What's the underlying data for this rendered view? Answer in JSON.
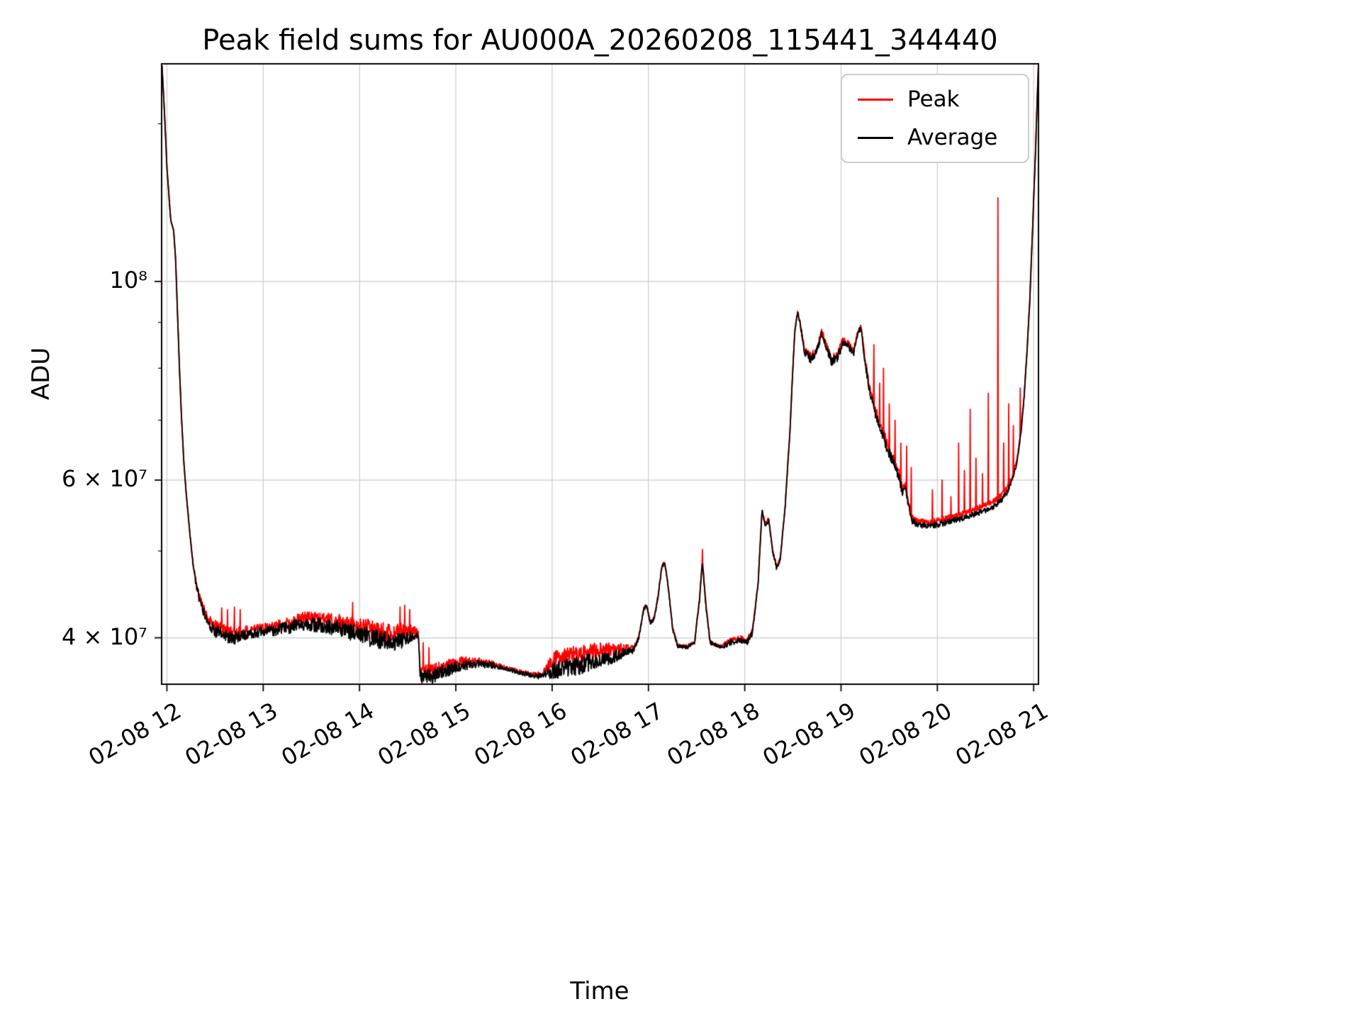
{
  "figure": {
    "title": "Peak field sums for AU000A_20260208_115441_344440",
    "xlabel": "Time",
    "ylabel": "ADU"
  },
  "legend": {
    "items": [
      {
        "label": "Peak",
        "color": "#ff0000"
      },
      {
        "label": "Average",
        "color": "#000000"
      }
    ]
  },
  "grid": {
    "show": true,
    "color": "#cccccc"
  },
  "chart_data": {
    "type": "line",
    "title": "Peak field sums for AU000A_20260208_115441_344440",
    "xlabel": "Time",
    "ylabel": "ADU",
    "y_scale": "log",
    "legend_position": "upper right",
    "x_axis": {
      "epoch_label": "02-08 12:00",
      "tick_hours": [
        0,
        1,
        2,
        3,
        4,
        5,
        6,
        7,
        8,
        9
      ],
      "tick_labels": [
        "02-08 12",
        "02-08 13",
        "02-08 14",
        "02-08 15",
        "02-08 16",
        "02-08 17",
        "02-08 18",
        "02-08 19",
        "02-08 20",
        "02-08 21"
      ],
      "range_hours": [
        -0.055,
        9.05
      ]
    },
    "y_axis": {
      "range": [
        35500000.0,
        175000000.0
      ],
      "major_ticks": [
        {
          "value": 40000000.0,
          "label": "4 × 10⁷"
        },
        {
          "value": 60000000.0,
          "label": "6 × 10⁷"
        },
        {
          "value": 100000000.0,
          "label": "10⁸"
        }
      ],
      "minor_ticks": [
        50000000.0,
        70000000.0,
        80000000.0,
        90000000.0,
        150000000.0
      ]
    },
    "series": [
      {
        "name": "Peak",
        "color": "#ff0000",
        "line_width": 1.8
      },
      {
        "name": "Average",
        "color": "#000000",
        "line_width": 1.8
      }
    ],
    "value_scale": 10000000.0,
    "sample_step_hours": 0.004,
    "noise_seed": 42,
    "baseline_keypoints": [
      [
        -0.051,
        17.4,
        0,
        0
      ],
      [
        -0.02,
        15.0,
        0,
        0
      ],
      [
        0.0,
        13.4,
        0,
        0
      ],
      [
        0.025,
        12.3,
        0,
        0
      ],
      [
        0.04,
        11.7,
        0,
        0
      ],
      [
        0.07,
        11.4,
        0,
        0
      ],
      [
        0.09,
        10.6,
        0,
        0
      ],
      [
        0.11,
        9.2,
        0,
        0
      ],
      [
        0.13,
        8.0,
        0,
        0
      ],
      [
        0.15,
        7.1,
        0,
        0
      ],
      [
        0.175,
        6.3,
        0,
        0
      ],
      [
        0.2,
        5.8,
        0,
        0
      ],
      [
        0.24,
        5.2,
        0.02,
        0.01
      ],
      [
        0.27,
        4.85,
        0.03,
        0.02
      ],
      [
        0.3,
        4.6,
        0.04,
        0.03
      ],
      [
        0.34,
        4.4,
        0.05,
        0.03
      ],
      [
        0.38,
        4.28,
        0.05,
        0.04
      ],
      [
        0.42,
        4.18,
        0.06,
        0.04
      ],
      [
        0.47,
        4.1,
        0.06,
        0.04
      ],
      [
        0.52,
        4.06,
        0.07,
        0.05
      ],
      [
        0.6,
        4.02,
        0.07,
        0.05
      ],
      [
        0.7,
        4.0,
        0.07,
        0.05
      ],
      [
        0.8,
        4.02,
        0.06,
        0.04
      ],
      [
        0.9,
        4.05,
        0.05,
        0.04
      ],
      [
        1.0,
        4.06,
        0.05,
        0.04
      ],
      [
        1.15,
        4.08,
        0.06,
        0.05
      ],
      [
        1.3,
        4.12,
        0.07,
        0.05
      ],
      [
        1.45,
        4.15,
        0.07,
        0.06
      ],
      [
        1.6,
        4.13,
        0.08,
        0.06
      ],
      [
        1.75,
        4.1,
        0.09,
        0.07
      ],
      [
        1.9,
        4.06,
        0.09,
        0.07
      ],
      [
        2.05,
        4.02,
        0.1,
        0.08
      ],
      [
        2.2,
        3.98,
        0.1,
        0.09
      ],
      [
        2.35,
        3.95,
        0.1,
        0.1
      ],
      [
        2.45,
        3.98,
        0.08,
        0.1
      ],
      [
        2.55,
        4.02,
        0.05,
        0.06
      ],
      [
        2.61,
        4.02,
        0.03,
        0.04
      ],
      [
        2.63,
        3.62,
        0.06,
        0.05
      ],
      [
        2.75,
        3.62,
        0.07,
        0.05
      ],
      [
        2.9,
        3.68,
        0.06,
        0.04
      ],
      [
        3.05,
        3.72,
        0.05,
        0.04
      ],
      [
        3.2,
        3.74,
        0.04,
        0.03
      ],
      [
        3.35,
        3.73,
        0.03,
        0.02
      ],
      [
        3.5,
        3.7,
        0.02,
        0.01
      ],
      [
        3.65,
        3.66,
        0.02,
        0.01
      ],
      [
        3.8,
        3.63,
        0.02,
        0.01
      ],
      [
        3.9,
        3.62,
        0.03,
        0.02
      ],
      [
        4.0,
        3.68,
        0.08,
        0.1
      ],
      [
        4.15,
        3.7,
        0.09,
        0.11
      ],
      [
        4.3,
        3.73,
        0.09,
        0.11
      ],
      [
        4.45,
        3.77,
        0.08,
        0.1
      ],
      [
        4.6,
        3.8,
        0.07,
        0.08
      ],
      [
        4.75,
        3.84,
        0.05,
        0.05
      ],
      [
        4.85,
        3.88,
        0.03,
        0.02
      ],
      [
        4.9,
        4.0,
        0.02,
        0.01
      ],
      [
        4.95,
        4.3,
        0.02,
        0.01
      ],
      [
        4.98,
        4.35,
        0.02,
        0.01
      ],
      [
        5.02,
        4.15,
        0.02,
        0.01
      ],
      [
        5.06,
        4.2,
        0.02,
        0.01
      ],
      [
        5.1,
        4.45,
        0.02,
        0.01
      ],
      [
        5.14,
        4.8,
        0.02,
        0.01
      ],
      [
        5.17,
        4.85,
        0.02,
        0.01
      ],
      [
        5.2,
        4.6,
        0.02,
        0.01
      ],
      [
        5.25,
        4.1,
        0.02,
        0.01
      ],
      [
        5.3,
        3.92,
        0.02,
        0.01
      ],
      [
        5.4,
        3.9,
        0.02,
        0.01
      ],
      [
        5.48,
        3.95,
        0.02,
        0.01
      ],
      [
        5.53,
        4.4,
        0.02,
        0.02
      ],
      [
        5.56,
        4.85,
        0.02,
        0.05
      ],
      [
        5.6,
        4.3,
        0.02,
        0.02
      ],
      [
        5.64,
        3.95,
        0.02,
        0.01
      ],
      [
        5.75,
        3.9,
        0.02,
        0.01
      ],
      [
        5.85,
        3.95,
        0.03,
        0.02
      ],
      [
        5.95,
        3.98,
        0.03,
        0.02
      ],
      [
        6.02,
        3.95,
        0.03,
        0.02
      ],
      [
        6.08,
        4.05,
        0.03,
        0.02
      ],
      [
        6.14,
        4.6,
        0.02,
        0.01
      ],
      [
        6.18,
        5.55,
        0.02,
        0.01
      ],
      [
        6.21,
        5.35,
        0.03,
        0.02
      ],
      [
        6.25,
        5.4,
        0.03,
        0.02
      ],
      [
        6.29,
        5.0,
        0.03,
        0.02
      ],
      [
        6.33,
        4.78,
        0.03,
        0.02
      ],
      [
        6.37,
        4.9,
        0.02,
        0.01
      ],
      [
        6.42,
        5.6,
        0.02,
        0.01
      ],
      [
        6.47,
        6.8,
        0.02,
        0.01
      ],
      [
        6.52,
        8.8,
        0.02,
        0.01
      ],
      [
        6.55,
        9.25,
        0.03,
        0.02
      ],
      [
        6.58,
        8.9,
        0.05,
        0.03
      ],
      [
        6.62,
        8.35,
        0.08,
        0.04
      ],
      [
        6.68,
        8.2,
        0.1,
        0.05
      ],
      [
        6.74,
        8.3,
        0.1,
        0.05
      ],
      [
        6.8,
        8.75,
        0.08,
        0.04
      ],
      [
        6.84,
        8.5,
        0.08,
        0.04
      ],
      [
        6.9,
        8.15,
        0.1,
        0.05
      ],
      [
        6.96,
        8.2,
        0.1,
        0.05
      ],
      [
        7.02,
        8.55,
        0.08,
        0.05
      ],
      [
        7.08,
        8.45,
        0.08,
        0.05
      ],
      [
        7.13,
        8.3,
        0.08,
        0.05
      ],
      [
        7.18,
        8.8,
        0.06,
        0.04
      ],
      [
        7.21,
        8.85,
        0.06,
        0.04
      ],
      [
        7.25,
        8.1,
        0.08,
        0.05
      ],
      [
        7.3,
        7.5,
        0.08,
        0.06
      ],
      [
        7.36,
        7.1,
        0.09,
        0.07
      ],
      [
        7.42,
        6.8,
        0.09,
        0.08
      ],
      [
        7.48,
        6.5,
        0.09,
        0.08
      ],
      [
        7.54,
        6.3,
        0.08,
        0.08
      ],
      [
        7.6,
        6.05,
        0.07,
        0.07
      ],
      [
        7.64,
        5.8,
        0.06,
        0.06
      ],
      [
        7.67,
        5.9,
        0.05,
        0.05
      ],
      [
        7.7,
        5.6,
        0.05,
        0.05
      ],
      [
        7.74,
        5.4,
        0.05,
        0.05
      ],
      [
        7.8,
        5.35,
        0.04,
        0.05
      ],
      [
        7.9,
        5.33,
        0.04,
        0.05
      ],
      [
        8.0,
        5.35,
        0.04,
        0.06
      ],
      [
        8.1,
        5.38,
        0.04,
        0.06
      ],
      [
        8.2,
        5.42,
        0.04,
        0.06
      ],
      [
        8.3,
        5.45,
        0.04,
        0.07
      ],
      [
        8.4,
        5.5,
        0.04,
        0.07
      ],
      [
        8.5,
        5.55,
        0.04,
        0.08
      ],
      [
        8.58,
        5.6,
        0.04,
        0.08
      ],
      [
        8.65,
        5.68,
        0.04,
        0.08
      ],
      [
        8.72,
        5.8,
        0.04,
        0.07
      ],
      [
        8.78,
        6.0,
        0.03,
        0.06
      ],
      [
        8.83,
        6.3,
        0.03,
        0.05
      ],
      [
        8.87,
        6.8,
        0.02,
        0.04
      ],
      [
        8.9,
        7.4,
        0.02,
        0.03
      ],
      [
        8.93,
        8.3,
        0.02,
        0.03
      ],
      [
        8.96,
        9.5,
        0.02,
        0.02
      ],
      [
        8.99,
        11.5,
        0,
        0
      ],
      [
        9.02,
        14.0,
        0,
        0
      ],
      [
        9.05,
        17.5,
        0,
        0
      ]
    ],
    "peak_spikes": [
      [
        0.57,
        4.32
      ],
      [
        0.63,
        4.3
      ],
      [
        0.7,
        4.33
      ],
      [
        0.76,
        4.3
      ],
      [
        1.93,
        4.38
      ],
      [
        2.42,
        4.33
      ],
      [
        2.47,
        4.35
      ],
      [
        2.52,
        4.3
      ],
      [
        2.66,
        3.95
      ],
      [
        2.72,
        3.9
      ],
      [
        5.56,
        5.02
      ],
      [
        7.34,
        8.5
      ],
      [
        7.4,
        7.7
      ],
      [
        7.44,
        8.0
      ],
      [
        7.5,
        7.3
      ],
      [
        7.56,
        7.0
      ],
      [
        7.62,
        6.6
      ],
      [
        7.68,
        6.55
      ],
      [
        7.73,
        6.2
      ],
      [
        7.95,
        5.85
      ],
      [
        8.05,
        6.0
      ],
      [
        8.14,
        5.75
      ],
      [
        8.22,
        6.6
      ],
      [
        8.28,
        6.15
      ],
      [
        8.34,
        7.2
      ],
      [
        8.4,
        6.35
      ],
      [
        8.47,
        6.1
      ],
      [
        8.53,
        7.5
      ],
      [
        8.63,
        12.4
      ],
      [
        8.69,
        6.6
      ],
      [
        8.74,
        7.3
      ],
      [
        8.79,
        6.9
      ],
      [
        8.86,
        7.6
      ]
    ]
  }
}
